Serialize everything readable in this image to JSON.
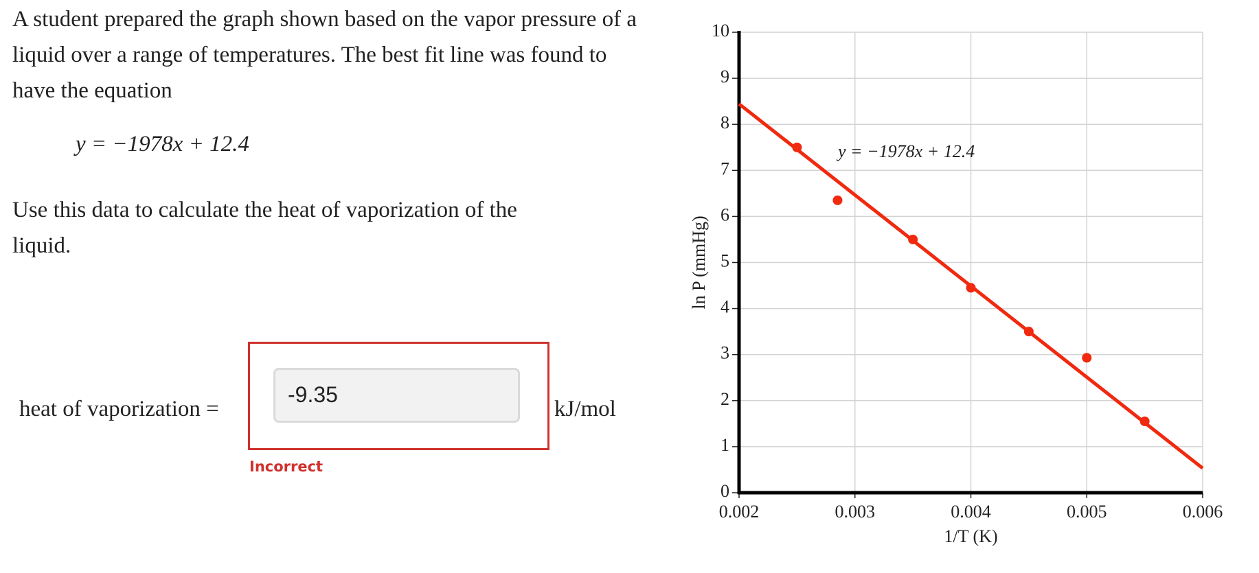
{
  "question": {
    "intro": "A student prepared the graph shown based on the vapor pressure of a liquid over a range of temperatures. The best fit line was found to have the equation",
    "equation": "y = −1978x + 12.4",
    "prompt": "Use this data to calculate the heat of vaporization of the liquid."
  },
  "answer": {
    "label": "heat of vaporization =",
    "value": "-9.35",
    "unit": "kJ/mol",
    "feedback": "Incorrect"
  },
  "chart_data": {
    "type": "scatter",
    "x_label": "1/T (K)",
    "y_label": "ln P (mmHg)",
    "annotation": "y = −1978x + 12.4",
    "color": "#f0290f",
    "grid": true,
    "points": {
      "x": [
        0.0025,
        0.00285,
        0.0035,
        0.004,
        0.0045,
        0.005,
        0.0055
      ],
      "y": [
        7.5,
        6.35,
        5.5,
        4.45,
        3.5,
        2.93,
        1.55
      ]
    },
    "fit_line": {
      "x": [
        0.002,
        0.006
      ],
      "y": [
        8.444,
        0.532
      ]
    },
    "xlim": [
      0.002,
      0.006
    ],
    "xticks": [
      0.002,
      0.003,
      0.004,
      0.005,
      0.006
    ],
    "ylim": [
      0,
      10
    ],
    "yticks": [
      0,
      1,
      2,
      3,
      4,
      5,
      6,
      7,
      8,
      9,
      10
    ]
  }
}
